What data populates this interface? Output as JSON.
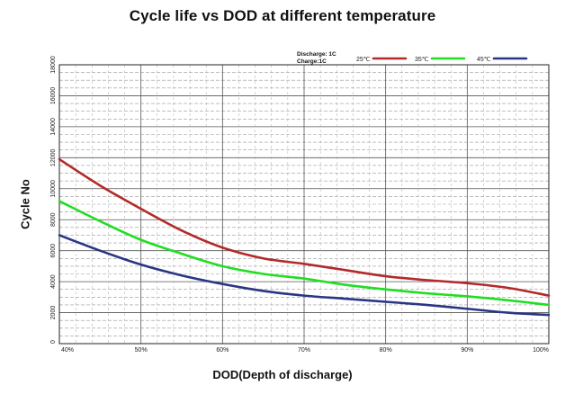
{
  "chart_data": {
    "type": "line",
    "title": "Cycle life vs DOD at different temperature",
    "xlabel": "DOD(Depth of discharge)",
    "ylabel": "Cycle No",
    "x_ticks": [
      "40%",
      "50%",
      "60%",
      "70%",
      "80%",
      "90%",
      "100%"
    ],
    "y_ticks": [
      "0",
      "2000",
      "4000",
      "6000",
      "8000",
      "10000",
      "12000",
      "14000",
      "16000",
      "18000"
    ],
    "xlim": [
      40,
      100
    ],
    "ylim": [
      0,
      18000
    ],
    "grid": true,
    "legend_position": "top-right",
    "conditions": [
      "Discharge:  1C",
      "Charge:1C"
    ],
    "series": [
      {
        "name": "25℃",
        "color": "#b22a2a",
        "x": [
          40,
          45,
          50,
          55,
          60,
          65,
          70,
          75,
          80,
          85,
          90,
          95,
          100
        ],
        "y": [
          11900,
          10200,
          8700,
          7300,
          6200,
          5500,
          5150,
          4750,
          4350,
          4100,
          3900,
          3600,
          3100
        ]
      },
      {
        "name": "35℃",
        "color": "#22dd22",
        "x": [
          40,
          45,
          50,
          55,
          60,
          65,
          70,
          75,
          80,
          85,
          90,
          95,
          100
        ],
        "y": [
          9200,
          7900,
          6700,
          5800,
          5000,
          4500,
          4200,
          3800,
          3500,
          3250,
          3050,
          2800,
          2500
        ]
      },
      {
        "name": "45℃",
        "color": "#2a3585",
        "x": [
          40,
          45,
          50,
          55,
          60,
          65,
          70,
          75,
          80,
          85,
          90,
          95,
          100
        ],
        "y": [
          7000,
          6000,
          5100,
          4400,
          3850,
          3400,
          3100,
          2900,
          2700,
          2500,
          2250,
          2000,
          1850
        ]
      }
    ]
  }
}
